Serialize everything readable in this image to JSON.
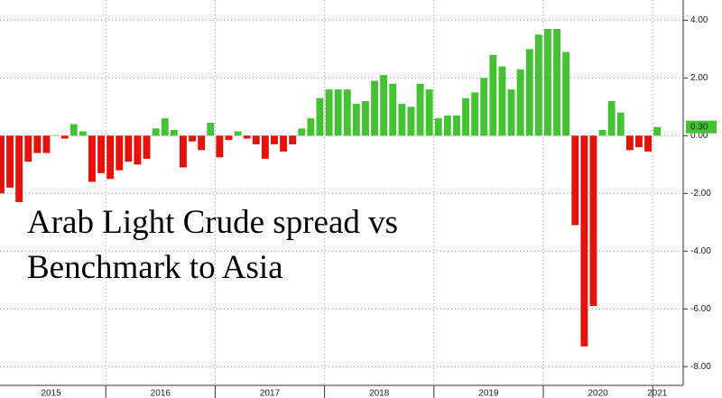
{
  "chart_data": {
    "type": "bar",
    "title": [
      "Arab Light Crude spread vs",
      "Benchmark to Asia"
    ],
    "categories": [
      null,
      null,
      null,
      null,
      null,
      null,
      null,
      null,
      null,
      null,
      null,
      null,
      null,
      null,
      null,
      null,
      null,
      null,
      null,
      null,
      null,
      null,
      null,
      null,
      null,
      null,
      null,
      null,
      null,
      null,
      null,
      null,
      null,
      null,
      null,
      null,
      null,
      null,
      null,
      null,
      null,
      null,
      null,
      null,
      null,
      null,
      null,
      null,
      null,
      null,
      null,
      null,
      null,
      null,
      null,
      null,
      null,
      null,
      null,
      null,
      null,
      null,
      null,
      null,
      null,
      null,
      null,
      null,
      null,
      null,
      null,
      null,
      null
    ],
    "year_labels": [
      "2015",
      "2016",
      "2017",
      "2018",
      "2019",
      "2020",
      "2021"
    ],
    "values": [
      -2.0,
      -1.8,
      -2.3,
      -0.9,
      -0.6,
      -0.6,
      0.02,
      -0.1,
      0.4,
      0.15,
      -1.6,
      -1.3,
      -1.5,
      -1.2,
      -0.9,
      -1.0,
      -0.8,
      0.25,
      0.6,
      0.2,
      -1.1,
      -0.2,
      -0.5,
      0.45,
      -0.75,
      -0.15,
      0.15,
      -0.1,
      -0.3,
      -0.8,
      -0.3,
      -0.55,
      -0.3,
      0.25,
      0.6,
      1.3,
      1.6,
      1.6,
      1.6,
      1.1,
      1.2,
      1.9,
      2.1,
      1.8,
      1.1,
      1.0,
      1.8,
      1.6,
      0.6,
      0.7,
      0.7,
      1.3,
      1.5,
      2.0,
      2.8,
      2.4,
      1.6,
      2.3,
      3.0,
      3.5,
      3.7,
      3.7,
      2.9,
      -3.1,
      -7.3,
      -5.9,
      0.2,
      1.2,
      0.8,
      -0.5,
      -0.4,
      -0.55,
      0.3
    ],
    "positive_color": "#45c234",
    "negative_color": "#e5120c",
    "current_value": {
      "value": 0.3,
      "label": "0.30"
    },
    "ylim": [
      -8.65,
      4.7
    ],
    "yticks": [
      {
        "value": 4,
        "label": "4.00"
      },
      {
        "value": 2,
        "label": "2.00"
      },
      {
        "value": 0,
        "label": "0.00"
      },
      {
        "value": -2,
        "label": "-2.00"
      },
      {
        "value": -4,
        "label": "-4.00"
      },
      {
        "value": -6,
        "label": "-6.00"
      },
      {
        "value": -8,
        "label": "-8.00"
      }
    ],
    "grid": true
  }
}
